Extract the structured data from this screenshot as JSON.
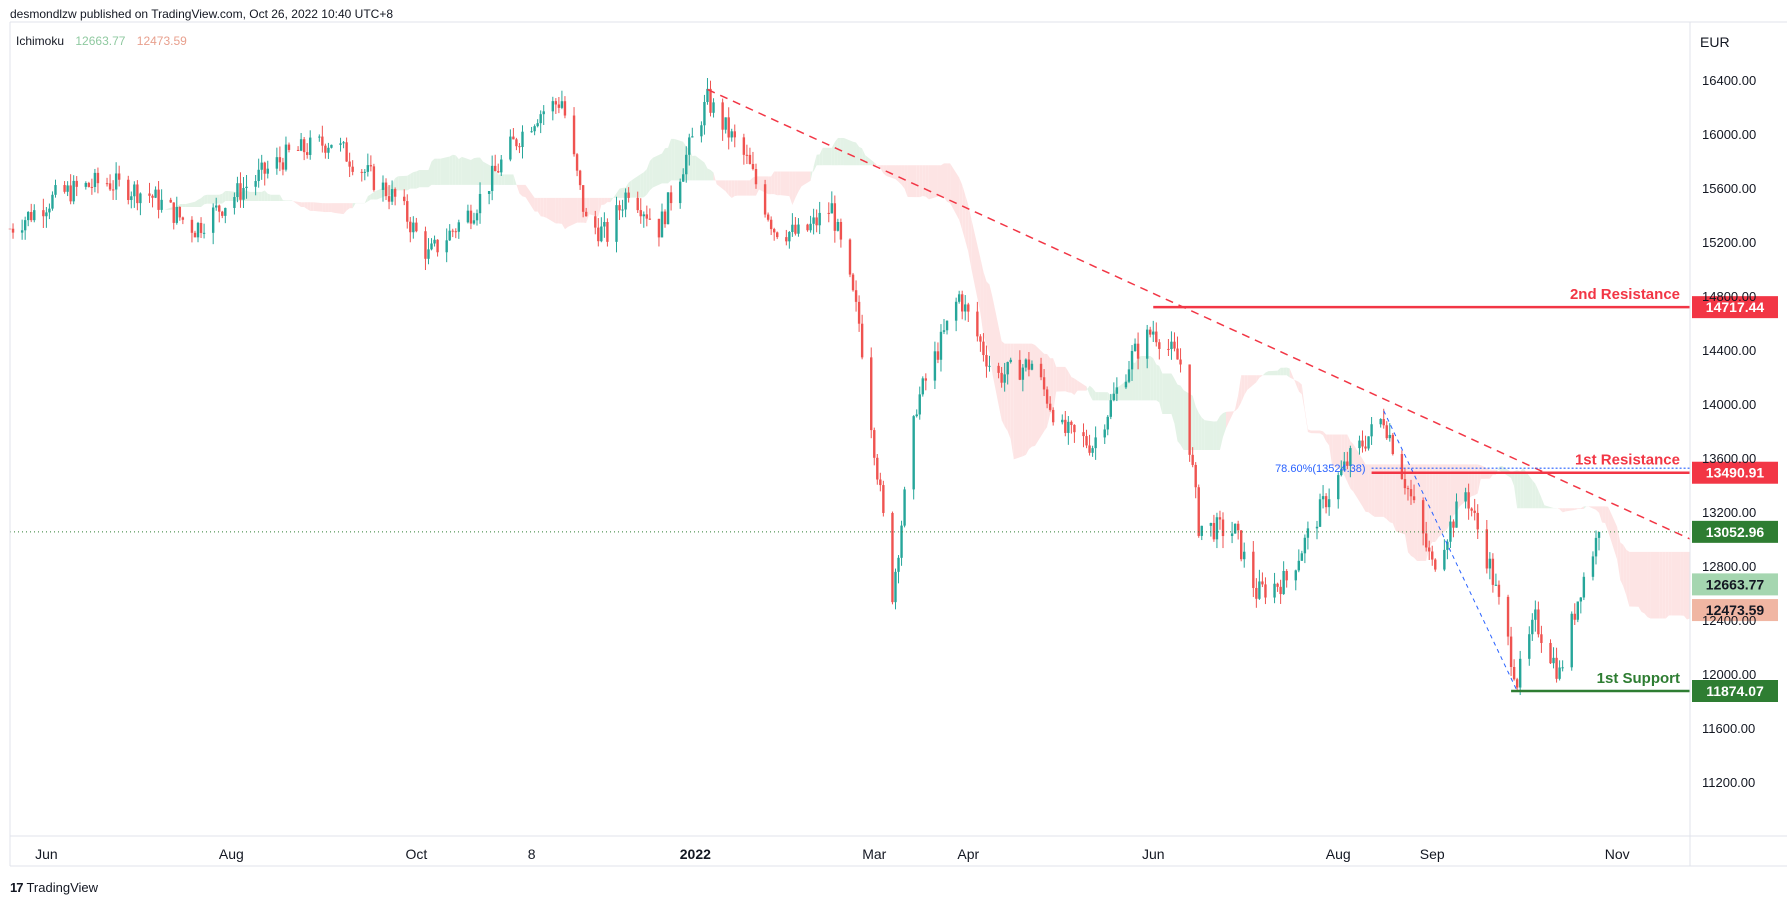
{
  "header": {
    "published_text": "desmondlzw published on TradingView.com, Oct 26, 2022 10:40 UTC+8"
  },
  "indicator": {
    "name": "Ichimoku",
    "value1": "12663.77",
    "value2": "12473.59"
  },
  "currency": "EUR",
  "footer": {
    "brand": "TradingView",
    "icon": "tradingview-logo-icon"
  },
  "colors": {
    "up": "#26a69a",
    "down": "#ef5350",
    "resistance": "#f23645",
    "support": "#2e7d32",
    "cloud_bull": "#e3f2e6",
    "cloud_bear": "#fde4e4",
    "fib": "#2962ff",
    "last_price": "#2e7d32",
    "cloud_badge_green": "#a5d6b0",
    "cloud_badge_red": "#f0b6a3"
  },
  "chart_data": {
    "type": "candlestick",
    "title": "",
    "ylim": [
      10800,
      16800
    ],
    "yticks": [
      11200,
      11600,
      12000,
      12400,
      12800,
      13200,
      13600,
      14000,
      14400,
      14800,
      15200,
      15600,
      16000,
      16400
    ],
    "ytick_labels": [
      "11200.00",
      "11600.00",
      "12000.00",
      "12400.00",
      "12800.00",
      "13200.00",
      "13600.00",
      "14000.00",
      "14400.00",
      "14800.00",
      "15200.00",
      "15600.00",
      "16000.00",
      "16400.00"
    ],
    "x_range": [
      "2021-05-20",
      "2022-11-25"
    ],
    "xticks": [
      {
        "date": "2021-06-01",
        "label": "Jun",
        "bold": false
      },
      {
        "date": "2021-08-01",
        "label": "Aug",
        "bold": false
      },
      {
        "date": "2021-10-01",
        "label": "Oct",
        "bold": false
      },
      {
        "date": "2021-11-08",
        "label": "8",
        "bold": false
      },
      {
        "date": "2022-01-01",
        "label": "2022",
        "bold": true
      },
      {
        "date": "2022-03-01",
        "label": "Mar",
        "bold": false
      },
      {
        "date": "2022-04-01",
        "label": "Apr",
        "bold": false
      },
      {
        "date": "2022-06-01",
        "label": "Jun",
        "bold": false
      },
      {
        "date": "2022-08-01",
        "label": "Aug",
        "bold": false
      },
      {
        "date": "2022-09-01",
        "label": "Sep",
        "bold": false
      },
      {
        "date": "2022-11-01",
        "label": "Nov",
        "bold": false
      }
    ],
    "price_path": [
      [
        "2021-05-20",
        15300
      ],
      [
        "2021-06-05",
        15550
      ],
      [
        "2021-06-20",
        15650
      ],
      [
        "2021-07-05",
        15550
      ],
      [
        "2021-07-20",
        15300
      ],
      [
        "2021-08-05",
        15600
      ],
      [
        "2021-08-20",
        15850
      ],
      [
        "2021-09-03",
        15950
      ],
      [
        "2021-09-15",
        15700
      ],
      [
        "2021-09-25",
        15500
      ],
      [
        "2021-10-05",
        15100
      ],
      [
        "2021-10-20",
        15450
      ],
      [
        "2021-11-01",
        15900
      ],
      [
        "2021-11-10",
        16150
      ],
      [
        "2021-11-18",
        16250
      ],
      [
        "2021-11-26",
        15350
      ],
      [
        "2021-12-03",
        15250
      ],
      [
        "2021-12-10",
        15600
      ],
      [
        "2021-12-20",
        15300
      ],
      [
        "2022-01-05",
        16250
      ],
      [
        "2022-01-18",
        15800
      ],
      [
        "2022-01-27",
        15300
      ],
      [
        "2022-02-05",
        15250
      ],
      [
        "2022-02-15",
        15450
      ],
      [
        "2022-02-24",
        14600
      ],
      [
        "2022-03-07",
        12600
      ],
      [
        "2022-03-15",
        14000
      ],
      [
        "2022-03-29",
        14800
      ],
      [
        "2022-04-10",
        14200
      ],
      [
        "2022-04-22",
        14300
      ],
      [
        "2022-05-02",
        13800
      ],
      [
        "2022-05-12",
        13700
      ],
      [
        "2022-05-25",
        14350
      ],
      [
        "2022-06-01",
        14550
      ],
      [
        "2022-06-10",
        14300
      ],
      [
        "2022-06-16",
        13100
      ],
      [
        "2022-06-28",
        13050
      ],
      [
        "2022-07-05",
        12600
      ],
      [
        "2022-07-15",
        12700
      ],
      [
        "2022-07-28",
        13300
      ],
      [
        "2022-08-05",
        13600
      ],
      [
        "2022-08-16",
        13900
      ],
      [
        "2022-08-25",
        13300
      ],
      [
        "2022-09-01",
        12800
      ],
      [
        "2022-09-12",
        13350
      ],
      [
        "2022-09-20",
        12800
      ],
      [
        "2022-09-29",
        11950
      ],
      [
        "2022-10-05",
        12400
      ],
      [
        "2022-10-13",
        12000
      ],
      [
        "2022-10-20",
        12650
      ],
      [
        "2022-10-26",
        13050
      ]
    ],
    "ichimoku": {
      "tenkan_current": 12663.77,
      "kijun_current": 12473.59
    },
    "levels": [
      {
        "name": "2nd Resistance",
        "value": 14717.44,
        "label": "14717.44",
        "type": "resistance",
        "start": "2022-06-01"
      },
      {
        "name": "1st Resistance",
        "value": 13490.91,
        "label": "13490.91",
        "type": "resistance",
        "start": "2022-08-12"
      },
      {
        "name": "1st Support",
        "value": 11874.07,
        "label": "11874.07",
        "type": "support",
        "start": "2022-09-27"
      }
    ],
    "last_price": {
      "value": 13052.96,
      "label": "13052.96"
    },
    "cloud_badges": [
      {
        "value": 12663.77,
        "label": "12663.77",
        "color": "green"
      },
      {
        "value": 12473.59,
        "label": "12473.59",
        "color": "red"
      }
    ],
    "trendline": [
      [
        "2022-01-05",
        16330
      ],
      [
        "2022-11-25",
        13000
      ]
    ],
    "fibonacci": {
      "text": "78.60%(13524.38)",
      "level": 13524.38,
      "from": [
        "2022-08-16",
        13950
      ],
      "to": [
        "2022-09-29",
        11874
      ],
      "line_start": "2022-08-12"
    }
  }
}
